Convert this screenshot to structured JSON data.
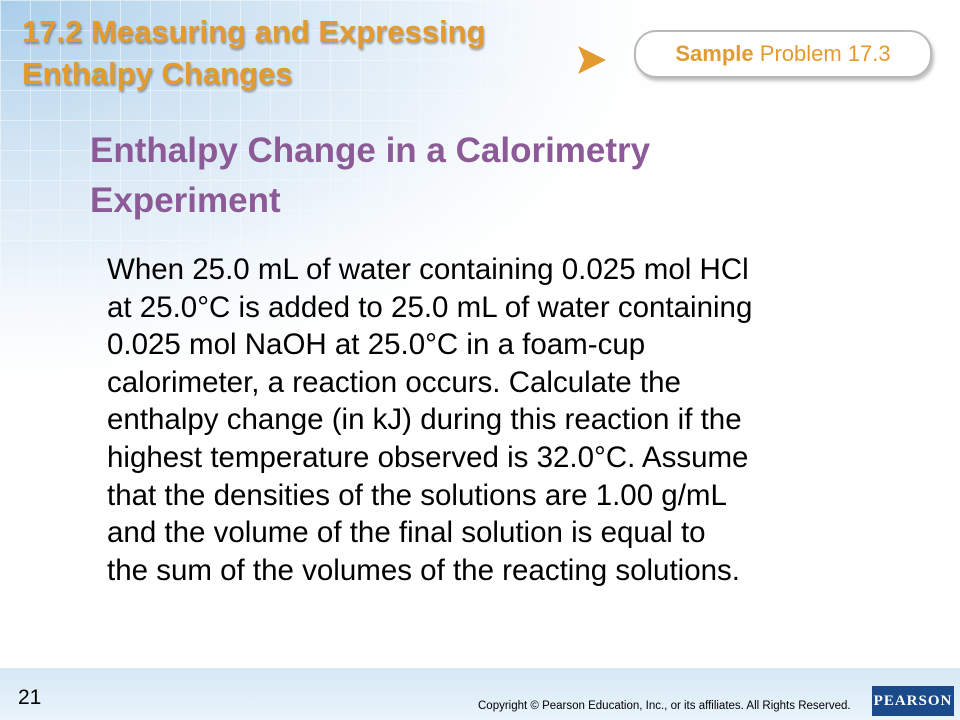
{
  "header": {
    "title_lines": [
      "17.2 Measuring and Expressing",
      "Enthalpy Changes"
    ]
  },
  "tab": {
    "bold": "Sample",
    "rest": "Problem 17.3"
  },
  "heading": {
    "lines": [
      "Enthalpy Change in a Calorimetry",
      "Experiment"
    ]
  },
  "body": {
    "lines": [
      "When 25.0 mL of water containing 0.025 mol HCl",
      "at 25.0°C is added to 25.0 mL of water containing",
      "0.025 mol NaOH at 25.0°C in a foam-cup",
      "calorimeter, a reaction occurs. Calculate the",
      "enthalpy change (in kJ) during this reaction if the",
      "highest temperature observed is 32.0°C. Assume",
      "that the densities of the solutions are 1.00 g/mL",
      "and the volume of the final solution is equal to",
      "the sum of the volumes of the reacting solutions."
    ]
  },
  "footer": {
    "page": "21",
    "copyright": "Copyright © Pearson Education, Inc., or its affiliates. All Rights Reserved.",
    "logo": "PEARSON"
  }
}
